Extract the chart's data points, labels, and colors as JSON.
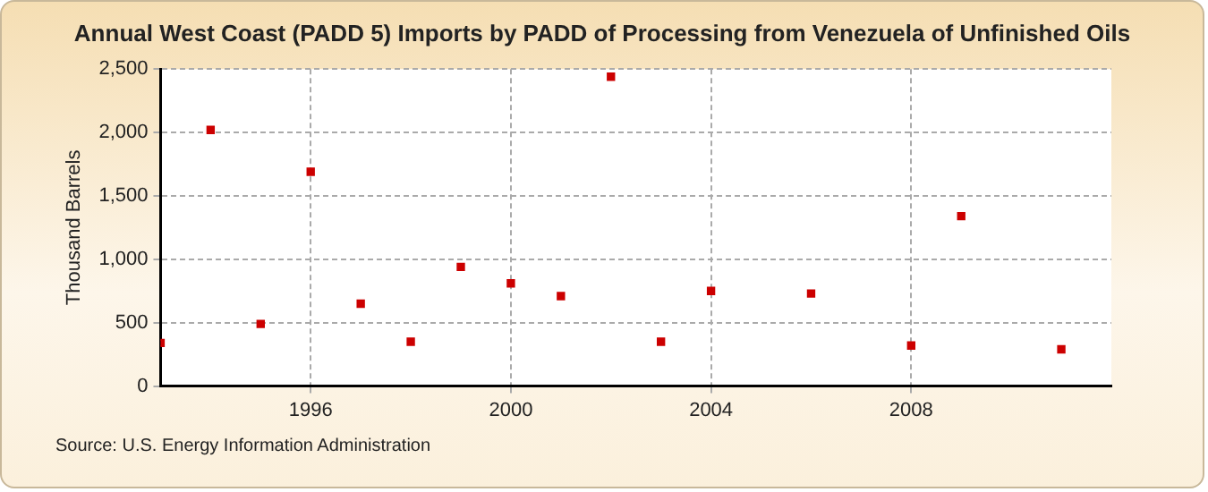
{
  "chart_data": {
    "type": "scatter",
    "title": "Annual West Coast (PADD 5) Imports by PADD of Processing from Venezuela of Unfinished Oils",
    "ylabel": "Thousand Barrels",
    "x": [
      1993,
      1994,
      1995,
      1996,
      1997,
      1998,
      1999,
      2000,
      2001,
      2002,
      2003,
      2004,
      2006,
      2008,
      2009,
      2011
    ],
    "series": [
      {
        "color": "#cc0000",
        "values": [
          340,
          2020,
          490,
          1690,
          650,
          350,
          940,
          810,
          710,
          2440,
          350,
          750,
          730,
          320,
          1340,
          290
        ]
      }
    ],
    "xlim": [
      1993,
      2012
    ],
    "xticks": [
      1996,
      2000,
      2004,
      2008
    ],
    "ylim": [
      0,
      2500
    ],
    "yticks": [
      {
        "value": 0,
        "label": "0"
      },
      {
        "value": 500,
        "label": "500"
      },
      {
        "value": 1000,
        "label": "1,000"
      },
      {
        "value": 1500,
        "label": "1,500"
      },
      {
        "value": 2000,
        "label": "2,000"
      },
      {
        "value": 2500,
        "label": "2,500"
      }
    ],
    "grid": true,
    "marker": "square",
    "legend": false,
    "annotations": [
      "Source: U.S. Energy Information Administration"
    ]
  }
}
